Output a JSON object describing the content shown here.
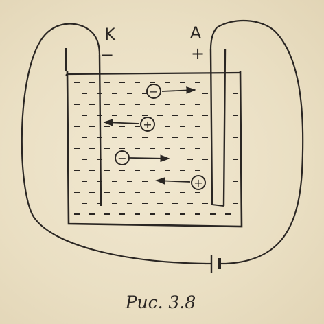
{
  "figure": {
    "cathode_label": "K",
    "anode_label": "A",
    "cathode_sign": "−",
    "anode_sign": "+",
    "caption": "Рис. 3.8"
  },
  "ions": [
    {
      "sign": "−",
      "kind": "anion"
    },
    {
      "sign": "+",
      "kind": "cation"
    },
    {
      "sign": "−",
      "kind": "anion"
    },
    {
      "sign": "+",
      "kind": "cation"
    }
  ],
  "colors": {
    "ink": "#2a2623",
    "paper": "#eee3c9"
  }
}
